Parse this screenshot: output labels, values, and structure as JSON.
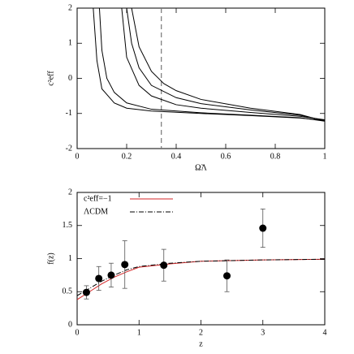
{
  "chart_data": [
    {
      "type": "line",
      "xlabel": "Ω̃Λ",
      "ylabel": "c²eff",
      "xlim": [
        0,
        1
      ],
      "ylim": [
        -2,
        2
      ],
      "xticks": [
        0,
        0.2,
        0.4,
        0.6,
        0.8,
        1
      ],
      "yticks": [
        -2,
        -1,
        0,
        1,
        2
      ],
      "vline": 0.34,
      "series": [
        {
          "color": "#000000",
          "x": [
            0.065,
            0.08,
            0.1,
            0.15,
            0.2,
            0.3,
            0.5,
            0.7,
            0.9,
            1.0
          ],
          "values": [
            2,
            0.5,
            -0.3,
            -0.7,
            -0.85,
            -0.93,
            -1.0,
            -1.06,
            -1.13,
            -1.2
          ]
        },
        {
          "color": "#000000",
          "x": [
            0.09,
            0.1,
            0.12,
            0.15,
            0.2,
            0.3,
            0.5,
            0.7,
            0.9,
            1.0
          ],
          "values": [
            2,
            0.8,
            0,
            -0.4,
            -0.7,
            -0.88,
            -0.98,
            -1.05,
            -1.12,
            -1.22
          ]
        },
        {
          "color": "#000000",
          "x": [
            0.18,
            0.2,
            0.25,
            0.3,
            0.4,
            0.5,
            0.7,
            0.9,
            1.0
          ],
          "values": [
            2,
            0.6,
            -0.2,
            -0.5,
            -0.75,
            -0.85,
            -0.97,
            -1.08,
            -1.18
          ]
        },
        {
          "color": "#000000",
          "x": [
            0.2,
            0.22,
            0.25,
            0.3,
            0.4,
            0.5,
            0.7,
            0.9,
            1.0
          ],
          "values": [
            2,
            1,
            0.3,
            -0.2,
            -0.55,
            -0.72,
            -0.9,
            -1.05,
            -1.2
          ]
        },
        {
          "color": "#000000",
          "x": [
            0.22,
            0.25,
            0.3,
            0.35,
            0.4,
            0.5,
            0.7,
            0.9,
            1.0
          ],
          "values": [
            2,
            0.9,
            0.2,
            -0.15,
            -0.35,
            -0.6,
            -0.85,
            -1.03,
            -1.22
          ]
        }
      ]
    },
    {
      "type": "line",
      "xlabel": "z",
      "ylabel": "f(z)",
      "xlim": [
        0,
        4
      ],
      "ylim": [
        0,
        2
      ],
      "xticks": [
        0,
        1,
        2,
        3,
        4
      ],
      "yticks": [
        0,
        0.5,
        1,
        1.5,
        2
      ],
      "series": [
        {
          "name": "c²eff=−1",
          "color": "#d62728",
          "style": "solid",
          "x": [
            0,
            0.2,
            0.4,
            0.6,
            0.8,
            1.0,
            1.5,
            2,
            3,
            4
          ],
          "values": [
            0.38,
            0.5,
            0.62,
            0.72,
            0.8,
            0.87,
            0.92,
            0.96,
            0.98,
            0.99
          ]
        },
        {
          "name": "ΛCDM",
          "color": "#000000",
          "style": "dashdot",
          "x": [
            0,
            0.2,
            0.4,
            0.6,
            0.8,
            1.0,
            1.5,
            2,
            3,
            4
          ],
          "values": [
            0.44,
            0.55,
            0.66,
            0.75,
            0.83,
            0.88,
            0.93,
            0.96,
            0.98,
            0.99
          ]
        }
      ],
      "measurements": {
        "color": "#000000",
        "x": [
          0.15,
          0.35,
          0.55,
          0.77,
          1.4,
          2.42,
          3.0
        ],
        "values": [
          0.49,
          0.7,
          0.75,
          0.91,
          0.9,
          0.74,
          1.46
        ],
        "errors": [
          0.1,
          0.18,
          0.18,
          0.36,
          0.24,
          0.24,
          0.29
        ]
      }
    }
  ]
}
